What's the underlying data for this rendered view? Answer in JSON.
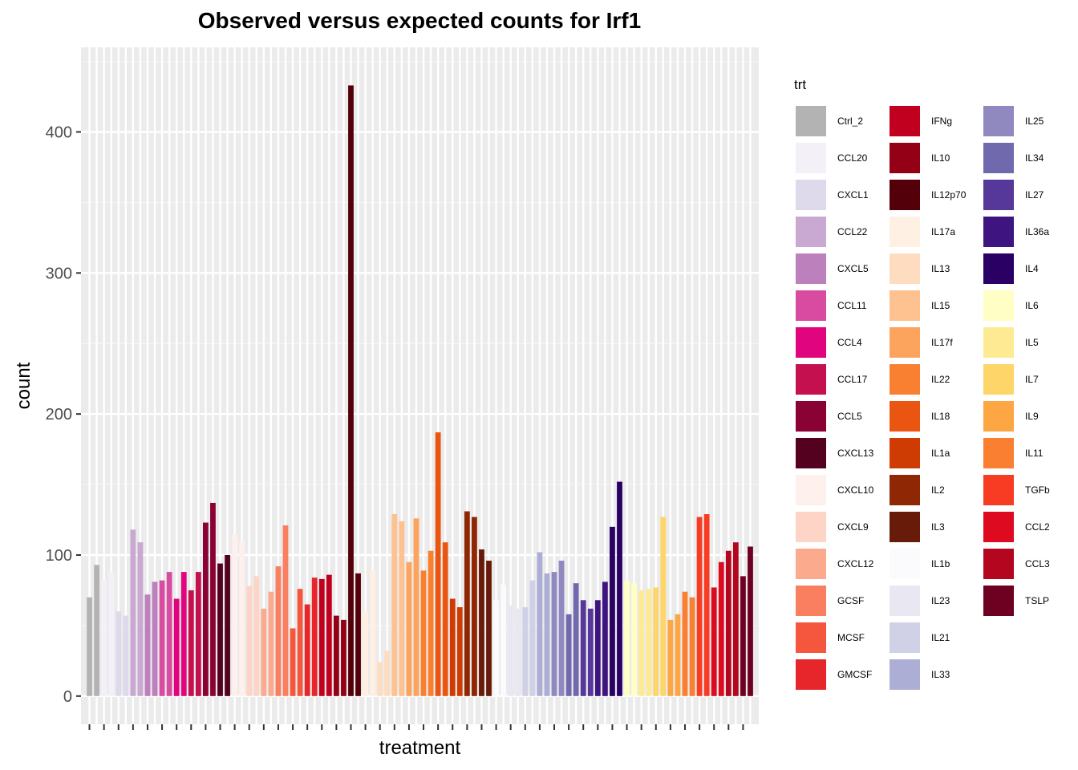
{
  "chart_data": {
    "type": "bar",
    "title": "Observed versus expected counts for Irf1",
    "xlabel": "treatment",
    "ylabel": "count",
    "ylim": [
      -20,
      460
    ],
    "yticks": [
      0,
      100,
      200,
      300,
      400
    ],
    "x_tick_labels": "none",
    "grid": true,
    "legend_position": "right",
    "legend_title": "trt",
    "groups": [
      {
        "name": "Ctrl_2",
        "color": "#B3B3B3",
        "values": [
          70,
          93
        ]
      },
      {
        "name": "CCL20",
        "color": "#F3F0F7",
        "values": [
          82,
          88
        ]
      },
      {
        "name": "CXCL1",
        "color": "#DFD9EC",
        "values": [
          60,
          57
        ]
      },
      {
        "name": "CCL22",
        "color": "#C9A9D1",
        "values": [
          118,
          109
        ]
      },
      {
        "name": "CXCL5",
        "color": "#BC80BD",
        "values": [
          72,
          81
        ]
      },
      {
        "name": "CCL11",
        "color": "#D94BA0",
        "values": [
          82,
          88
        ]
      },
      {
        "name": "CCL4",
        "color": "#E0057E",
        "values": [
          69,
          88
        ]
      },
      {
        "name": "CCL17",
        "color": "#C4104E",
        "values": [
          75,
          88
        ]
      },
      {
        "name": "CCL5",
        "color": "#8A0234",
        "values": [
          123,
          137
        ]
      },
      {
        "name": "CXCL13",
        "color": "#54001F",
        "values": [
          94,
          100
        ]
      },
      {
        "name": "CXCL10",
        "color": "#FEF0EC",
        "values": [
          115,
          110
        ]
      },
      {
        "name": "CXCL9",
        "color": "#FDD4C5",
        "values": [
          78,
          85
        ]
      },
      {
        "name": "CXCL12",
        "color": "#FCAA8E",
        "values": [
          62,
          74
        ]
      },
      {
        "name": "GCSF",
        "color": "#FA7F60",
        "values": [
          92,
          121
        ]
      },
      {
        "name": "MCSF",
        "color": "#F4573D",
        "values": [
          48,
          76
        ]
      },
      {
        "name": "GMCSF",
        "color": "#E6262A",
        "values": [
          65,
          84
        ]
      },
      {
        "name": "IFNg",
        "color": "#C1001F",
        "values": [
          83,
          86
        ]
      },
      {
        "name": "IL10",
        "color": "#940016",
        "values": [
          57,
          54
        ]
      },
      {
        "name": "IL12p70",
        "color": "#54000A",
        "values": [
          433,
          87
        ]
      },
      {
        "name": "IL17a",
        "color": "#FEF1E4",
        "values": [
          60,
          89
        ]
      },
      {
        "name": "IL13",
        "color": "#FDDCC0",
        "values": [
          24,
          32
        ]
      },
      {
        "name": "IL15",
        "color": "#FDC290",
        "values": [
          129,
          124
        ]
      },
      {
        "name": "IL17f",
        "color": "#FCA35D",
        "values": [
          95,
          126
        ]
      },
      {
        "name": "IL22",
        "color": "#F98030",
        "values": [
          89,
          103
        ]
      },
      {
        "name": "IL18",
        "color": "#EA5612",
        "values": [
          187,
          109
        ]
      },
      {
        "name": "IL1a",
        "color": "#CE3B03",
        "values": [
          69,
          63
        ]
      },
      {
        "name": "IL2",
        "color": "#8F2704",
        "values": [
          131,
          127
        ]
      },
      {
        "name": "IL3",
        "color": "#671B08",
        "values": [
          104,
          96
        ]
      },
      {
        "name": "IL1b",
        "color": "#FBFAFD",
        "values": [
          68,
          79
        ]
      },
      {
        "name": "IL23",
        "color": "#E9E7F2",
        "values": [
          64,
          62
        ]
      },
      {
        "name": "IL21",
        "color": "#D0D1E6",
        "values": [
          63,
          82
        ]
      },
      {
        "name": "IL33",
        "color": "#ADAED5",
        "values": [
          102,
          87
        ]
      },
      {
        "name": "IL25",
        "color": "#9089C0",
        "values": [
          88,
          96
        ]
      },
      {
        "name": "IL34",
        "color": "#7169AE",
        "values": [
          58,
          80
        ]
      },
      {
        "name": "IL27",
        "color": "#56379A",
        "values": [
          68,
          62
        ]
      },
      {
        "name": "IL36a",
        "color": "#3E1580",
        "values": [
          68,
          81
        ]
      },
      {
        "name": "IL4",
        "color": "#2A0065",
        "values": [
          120,
          152
        ]
      },
      {
        "name": "IL6",
        "color": "#FFFEC5",
        "values": [
          82,
          80
        ]
      },
      {
        "name": "IL5",
        "color": "#FEEA92",
        "values": [
          75,
          76
        ]
      },
      {
        "name": "IL7",
        "color": "#FED568",
        "values": [
          77,
          127
        ]
      },
      {
        "name": "IL9",
        "color": "#FDA644",
        "values": [
          54,
          58
        ]
      },
      {
        "name": "IL11",
        "color": "#FB7F30",
        "values": [
          74,
          70
        ]
      },
      {
        "name": "TGFb",
        "color": "#F83C24",
        "values": [
          127,
          129
        ]
      },
      {
        "name": "CCL2",
        "color": "#DE0B20",
        "values": [
          77,
          95
        ]
      },
      {
        "name": "CCL3",
        "color": "#B4061E",
        "values": [
          103,
          109
        ]
      },
      {
        "name": "TSLP",
        "color": "#6E0022",
        "values": [
          85,
          106
        ]
      }
    ]
  }
}
